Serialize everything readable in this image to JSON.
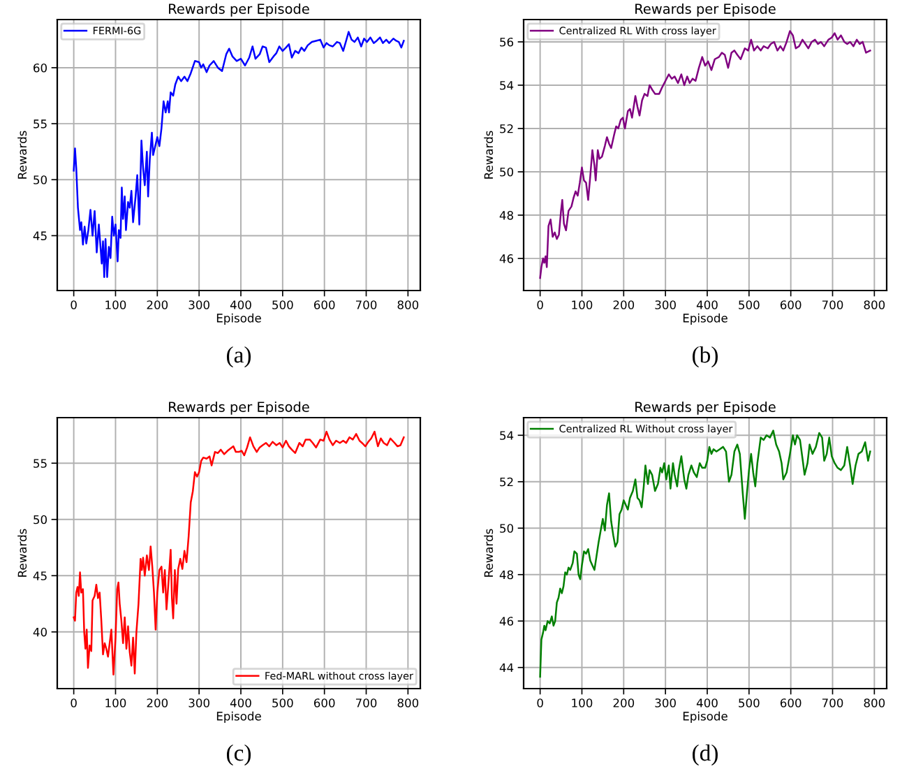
{
  "chart_data": [
    {
      "type": "line",
      "title": "Rewards per Episode",
      "xlabel": "Episode",
      "ylabel": "Rewards",
      "annotations": [
        "(a)"
      ],
      "legend": "top left",
      "grid": true,
      "xlim": [
        -39.5,
        829.5
      ],
      "ylim": [
        40.1,
        64.3
      ],
      "xticks": [
        0,
        100,
        200,
        300,
        400,
        500,
        600,
        700,
        800
      ],
      "yticks": [
        45,
        50,
        55,
        60
      ],
      "series": [
        {
          "name": "FERMI-6G",
          "color": "#0000ff",
          "x": [
            0,
            3,
            6,
            10,
            15,
            18,
            22,
            26,
            30,
            35,
            40,
            45,
            50,
            55,
            60,
            63,
            67,
            70,
            73,
            76,
            80,
            84,
            88,
            92,
            96,
            100,
            105,
            108,
            112,
            115,
            118,
            122,
            125,
            130,
            134,
            138,
            142,
            148,
            152,
            157,
            162,
            166,
            170,
            175,
            178,
            182,
            187,
            190,
            195,
            200,
            205,
            210,
            215,
            220,
            225,
            228,
            232,
            238,
            243,
            250,
            257,
            265,
            272,
            280,
            290,
            300,
            305,
            310,
            318,
            325,
            335,
            345,
            355,
            365,
            372,
            380,
            390,
            400,
            410,
            420,
            428,
            435,
            445,
            452,
            460,
            468,
            478,
            485,
            492,
            500,
            508,
            515,
            522,
            530,
            538,
            545,
            552,
            560,
            570,
            580,
            590,
            598,
            605,
            612,
            620,
            630,
            637,
            645,
            652,
            658,
            665,
            672,
            680,
            688,
            695,
            702,
            710,
            718,
            725,
            733,
            740,
            748,
            755,
            765,
            772,
            778,
            784,
            790
          ],
          "values": [
            50.8,
            52.8,
            51,
            47.5,
            45.5,
            46.2,
            44.2,
            45.8,
            44.3,
            45.5,
            47.3,
            45,
            47.2,
            43.5,
            46,
            44.5,
            42.5,
            44.5,
            41.3,
            44.7,
            41.3,
            44,
            43,
            46.7,
            45,
            46,
            42.7,
            45.5,
            44.8,
            49.3,
            46.5,
            48.5,
            45.5,
            48,
            47.5,
            49,
            46.2,
            48.5,
            50.4,
            46,
            53.5,
            51,
            49.5,
            52.5,
            48.5,
            51.8,
            54.2,
            52.2,
            53,
            53.8,
            53,
            54.6,
            57,
            56,
            57,
            56,
            57.8,
            57.5,
            58.5,
            59.2,
            58.8,
            59.2,
            58.8,
            59.5,
            60.6,
            60.5,
            60,
            60.3,
            59.6,
            60.2,
            60.6,
            60,
            59.7,
            61.2,
            61.7,
            61,
            60.6,
            60.8,
            60.2,
            60.9,
            61.9,
            60.8,
            61.2,
            61.9,
            61.8,
            60.5,
            61,
            61.3,
            61.9,
            61.5,
            61.8,
            62.1,
            60.9,
            61.5,
            61.3,
            61.8,
            61.5,
            62,
            62.3,
            62.4,
            62.5,
            61.8,
            62.2,
            62,
            61.9,
            62.3,
            62.2,
            61.5,
            62.4,
            63.2,
            62.5,
            62.3,
            62.7,
            61.9,
            62.6,
            62.3,
            62.7,
            62.2,
            62.4,
            62.7,
            62.2,
            62.5,
            62.2,
            62.6,
            62.4,
            62.3,
            61.8,
            62.4
          ]
        }
      ]
    },
    {
      "type": "line",
      "title": "Rewards per Episode",
      "xlabel": "Episode",
      "ylabel": "Rewards",
      "annotations": [
        "(b)"
      ],
      "legend": "top left",
      "grid": true,
      "xlim": [
        -39.5,
        829.5
      ],
      "ylim": [
        44.52,
        57.03
      ],
      "xticks": [
        0,
        100,
        200,
        300,
        400,
        500,
        600,
        700,
        800
      ],
      "yticks": [
        46,
        48,
        50,
        52,
        54,
        56
      ],
      "series": [
        {
          "name": "Centralized RL With cross layer",
          "color": "#800080",
          "x": [
            0,
            3,
            7,
            10,
            13,
            16,
            20,
            25,
            30,
            35,
            40,
            45,
            50,
            53,
            57,
            62,
            68,
            75,
            80,
            85,
            90,
            95,
            100,
            105,
            110,
            115,
            120,
            125,
            130,
            133,
            138,
            142,
            148,
            155,
            160,
            165,
            170,
            177,
            182,
            187,
            193,
            198,
            203,
            210,
            215,
            220,
            228,
            233,
            238,
            244,
            250,
            257,
            262,
            268,
            275,
            285,
            292,
            300,
            308,
            315,
            322,
            330,
            338,
            345,
            352,
            358,
            365,
            372,
            380,
            388,
            395,
            402,
            410,
            418,
            428,
            435,
            442,
            450,
            458,
            465,
            472,
            480,
            490,
            498,
            505,
            512,
            520,
            528,
            535,
            545,
            552,
            560,
            568,
            575,
            582,
            590,
            598,
            605,
            612,
            620,
            628,
            635,
            642,
            650,
            658,
            665,
            672,
            680,
            690,
            698,
            705,
            712,
            720,
            728,
            735,
            742,
            750,
            758,
            765,
            772,
            780,
            790
          ],
          "values": [
            45.1,
            45.6,
            46,
            45.8,
            46.1,
            45.6,
            47.5,
            47.8,
            47,
            47.2,
            46.9,
            47.1,
            48.2,
            48.7,
            47.6,
            47.3,
            48.2,
            48.4,
            48.8,
            49.1,
            48.9,
            49.5,
            50.2,
            49.6,
            49.5,
            48.7,
            49.8,
            51,
            50.3,
            49.6,
            51,
            50.6,
            50.7,
            51.2,
            51.6,
            51.3,
            51.1,
            51.7,
            52.1,
            52,
            52.4,
            52.5,
            52,
            52.8,
            52.9,
            52.5,
            53.5,
            53,
            52.6,
            53.3,
            53.6,
            53.5,
            54,
            53.8,
            53.6,
            53.6,
            53.9,
            54.2,
            54.5,
            54.3,
            54.4,
            54.1,
            54.5,
            54,
            54.4,
            54.1,
            54.3,
            54.2,
            54.8,
            55.3,
            54.9,
            55.1,
            54.7,
            55.2,
            55.3,
            55.5,
            55.4,
            54.8,
            55.5,
            55.6,
            55.4,
            55.2,
            55.7,
            55.6,
            56.1,
            55.6,
            55.8,
            55.6,
            55.8,
            55.7,
            55.9,
            56,
            55.6,
            55.8,
            55.6,
            56,
            56.5,
            56.3,
            55.7,
            55.8,
            56.1,
            55.9,
            55.7,
            56,
            56.1,
            55.9,
            56,
            55.8,
            56.1,
            56.2,
            56.4,
            56.1,
            56.3,
            56,
            55.9,
            56,
            55.8,
            56.1,
            55.9,
            56,
            55.5,
            55.6
          ]
        }
      ]
    },
    {
      "type": "line",
      "title": "Rewards per Episode",
      "xlabel": "Episode",
      "ylabel": "Rewards",
      "annotations": [
        "(c)"
      ],
      "legend": "bottom right",
      "grid": true,
      "xlim": [
        -39.5,
        829.5
      ],
      "ylim": [
        34.96,
        59.05
      ],
      "xticks": [
        0,
        100,
        200,
        300,
        400,
        500,
        600,
        700,
        800
      ],
      "yticks": [
        40,
        45,
        50,
        55
      ],
      "series": [
        {
          "name": "Fed-MARL without cross layer",
          "color": "#ff0000",
          "x": [
            0,
            3,
            6,
            9,
            12,
            15,
            18,
            22,
            25,
            28,
            31,
            34,
            38,
            42,
            45,
            50,
            54,
            58,
            62,
            66,
            70,
            74,
            78,
            82,
            86,
            90,
            95,
            100,
            104,
            107,
            110,
            114,
            118,
            122,
            126,
            130,
            134,
            138,
            142,
            146,
            150,
            155,
            160,
            163,
            166,
            170,
            175,
            180,
            184,
            188,
            192,
            196,
            200,
            205,
            210,
            214,
            218,
            222,
            226,
            232,
            235,
            238,
            242,
            246,
            250,
            255,
            260,
            265,
            270,
            275,
            280,
            285,
            290,
            295,
            300,
            305,
            310,
            318,
            325,
            330,
            338,
            345,
            352,
            360,
            368,
            375,
            382,
            388,
            395,
            402,
            408,
            415,
            422,
            430,
            438,
            445,
            452,
            460,
            468,
            476,
            485,
            493,
            500,
            508,
            515,
            522,
            530,
            540,
            548,
            555,
            565,
            572,
            580,
            590,
            598,
            605,
            612,
            620,
            628,
            637,
            645,
            652,
            660,
            668,
            676,
            684,
            690,
            698,
            705,
            712,
            720,
            728,
            735,
            742,
            750,
            758,
            768,
            775,
            782,
            790
          ],
          "values": [
            41.3,
            41,
            43.5,
            44,
            43.2,
            45.3,
            43.5,
            43.8,
            40,
            38.5,
            40.2,
            36.8,
            38.8,
            38.3,
            42.8,
            43.2,
            44.2,
            43,
            43.5,
            41,
            38,
            39,
            38.5,
            37.8,
            39,
            40.2,
            36.2,
            39.5,
            43.8,
            44.4,
            42.5,
            41,
            39,
            41.3,
            38.5,
            40.5,
            38.2,
            37,
            39.5,
            36.3,
            40,
            42.5,
            46.5,
            45.5,
            46.6,
            45,
            46.8,
            45.5,
            47.6,
            45.8,
            43.5,
            40.2,
            43.5,
            45.5,
            45.8,
            43.5,
            45.5,
            42,
            44,
            47.3,
            43,
            41.2,
            45.5,
            42.5,
            45.6,
            46.5,
            45.6,
            47.2,
            46.2,
            48.5,
            51.5,
            52.5,
            54.2,
            53.8,
            54.2,
            55.2,
            55.5,
            55.4,
            55.6,
            54.8,
            56,
            55.9,
            56.2,
            55.8,
            56.1,
            56.3,
            56.5,
            56,
            56,
            56.1,
            55.7,
            56.4,
            57.3,
            56.5,
            56,
            56.4,
            56.6,
            56.8,
            56.5,
            56.9,
            56.6,
            56.8,
            56.4,
            57,
            56.5,
            56.2,
            55.9,
            56.8,
            56.5,
            57.1,
            57.1,
            56.8,
            56.4,
            57.1,
            57,
            57.8,
            57.1,
            56.6,
            57,
            56.8,
            57,
            56.8,
            57.3,
            57.1,
            57.6,
            57,
            56.8,
            56.5,
            56.9,
            57.2,
            57.8,
            56.5,
            57.2,
            56.8,
            56.6,
            57.2,
            56.8,
            56.5,
            56.6,
            57.3
          ]
        }
      ]
    },
    {
      "type": "line",
      "title": "Rewards per Episode",
      "xlabel": "Episode",
      "ylabel": "Rewards",
      "annotations": [
        "(d)"
      ],
      "legend": "top left",
      "grid": true,
      "xlim": [
        -39.5,
        829.5
      ],
      "ylim": [
        43.09,
        54.76
      ],
      "xticks": [
        0,
        100,
        200,
        300,
        400,
        500,
        600,
        700,
        800
      ],
      "yticks": [
        44,
        46,
        48,
        50,
        52,
        54
      ],
      "series": [
        {
          "name": "Centralized RL Without cross layer",
          "color": "#008000",
          "x": [
            0,
            3,
            7,
            10,
            13,
            18,
            23,
            28,
            32,
            36,
            40,
            44,
            48,
            52,
            56,
            60,
            64,
            68,
            72,
            78,
            82,
            88,
            92,
            96,
            100,
            105,
            110,
            115,
            120,
            125,
            130,
            135,
            140,
            145,
            150,
            155,
            160,
            165,
            170,
            175,
            180,
            185,
            190,
            195,
            200,
            205,
            210,
            215,
            222,
            228,
            233,
            238,
            243,
            248,
            252,
            258,
            262,
            268,
            275,
            282,
            288,
            292,
            297,
            302,
            308,
            312,
            318,
            322,
            328,
            332,
            338,
            345,
            350,
            355,
            362,
            368,
            375,
            382,
            388,
            395,
            400,
            405,
            410,
            415,
            422,
            430,
            438,
            445,
            452,
            458,
            465,
            472,
            478,
            485,
            490,
            495,
            500,
            505,
            510,
            515,
            520,
            528,
            535,
            542,
            550,
            558,
            565,
            572,
            578,
            582,
            590,
            598,
            605,
            610,
            615,
            622,
            628,
            633,
            640,
            645,
            652,
            660,
            668,
            675,
            680,
            686,
            692,
            698,
            705,
            712,
            720,
            728,
            735,
            742,
            748,
            755,
            762,
            770,
            778,
            785,
            790
          ],
          "values": [
            43.6,
            45.2,
            45.5,
            45.8,
            45.6,
            46,
            45.9,
            46.2,
            45.8,
            46,
            46.8,
            47,
            47.4,
            47.2,
            47.5,
            48.1,
            48,
            48.3,
            48.2,
            48.5,
            49,
            48.9,
            48,
            47.8,
            48.4,
            49,
            48.9,
            49.1,
            48.6,
            48.4,
            48.2,
            48.8,
            49.4,
            49.9,
            50.4,
            49.9,
            51,
            51.5,
            50.3,
            49.7,
            49.2,
            49.4,
            50.6,
            50.8,
            51.2,
            51,
            50.8,
            51.3,
            51.6,
            52.1,
            51.3,
            51.2,
            50.9,
            51.8,
            52.7,
            51.9,
            52.5,
            52.3,
            51.6,
            51.9,
            52.6,
            52.4,
            52.8,
            52.1,
            52.7,
            51.7,
            52.8,
            52.3,
            51.8,
            52.5,
            53.1,
            52.1,
            51.7,
            52.3,
            52.7,
            52.4,
            52.2,
            52.8,
            52.6,
            52.6,
            52.9,
            53.5,
            53.2,
            53.4,
            53.3,
            53.4,
            53.5,
            53.3,
            52,
            52.3,
            53.3,
            53.6,
            53.2,
            51.5,
            50.4,
            51.5,
            52.5,
            53.2,
            52.4,
            51.8,
            52.8,
            53.9,
            53.8,
            54,
            53.9,
            54.2,
            53.6,
            53.3,
            52.8,
            52.1,
            52.4,
            53.2,
            54,
            53.6,
            54,
            53.8,
            53,
            52.3,
            52.8,
            53.6,
            53.2,
            53.5,
            54.1,
            53.9,
            52.9,
            53.2,
            53.9,
            53.1,
            52.8,
            52.6,
            52.5,
            52.7,
            53.5,
            52.7,
            51.9,
            52.7,
            53.2,
            53.3,
            53.7,
            52.9,
            53.3
          ]
        }
      ]
    }
  ]
}
